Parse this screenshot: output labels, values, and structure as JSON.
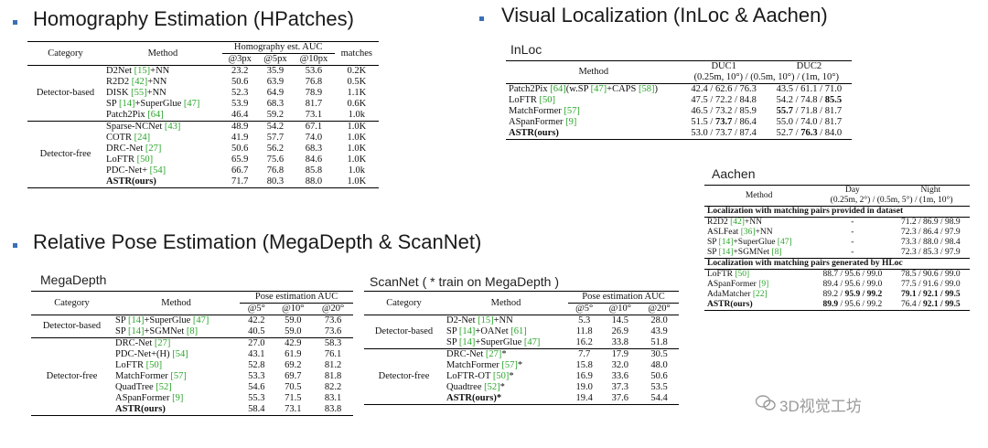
{
  "headings": {
    "homography": "Homography Estimation (HPatches)",
    "visloc": "Visual Localization (InLoc & Aachen)",
    "relpose": "Relative Pose Estimation (MegaDepth & ScanNet)"
  },
  "colors": {
    "bullet": "#3b6fb6",
    "ref_green": "#2aa52a"
  },
  "homography": {
    "hdr": {
      "category": "Category",
      "method": "Method",
      "group": "Homography est. AUC",
      "matches": "matches",
      "c1": "@3px",
      "c2": "@5px",
      "c3": "@10px"
    },
    "cat1": "Detector-based",
    "cat2": "Detector-free",
    "rows1": [
      {
        "m": "D2Net ",
        "r": "[15]",
        "s": "+NN",
        "v": [
          "23.2",
          "35.9",
          "53.6",
          "0.2K"
        ]
      },
      {
        "m": "R2D2 ",
        "r": "[42]",
        "s": "+NN",
        "v": [
          "50.6",
          "63.9",
          "76.8",
          "0.5K"
        ]
      },
      {
        "m": "DISK ",
        "r": "[55]",
        "s": "+NN",
        "v": [
          "52.3",
          "64.9",
          "78.9",
          "1.1K"
        ]
      },
      {
        "m": "SP ",
        "r": "[14]",
        "s": "+SuperGlue ",
        "r2": "[47]",
        "v": [
          "53.9",
          "68.3",
          "81.7",
          "0.6K"
        ]
      },
      {
        "m": "Patch2Pix ",
        "r": "[64]",
        "s": "",
        "v": [
          "46.4",
          "59.2",
          "73.1",
          "1.0k"
        ]
      }
    ],
    "rows2": [
      {
        "m": "Sparse-NCNet ",
        "r": "[43]",
        "s": "",
        "v": [
          "48.9",
          "54.2",
          "67.1",
          "1.0K"
        ]
      },
      {
        "m": "COTR ",
        "r": "[24]",
        "s": "",
        "v": [
          "41.9",
          "57.7",
          "74.0",
          "1.0K"
        ]
      },
      {
        "m": "DRC-Net ",
        "r": "[27]",
        "s": "",
        "v": [
          "50.6",
          "56.2",
          "68.3",
          "1.0K"
        ]
      },
      {
        "m": "LoFTR ",
        "r": "[50]",
        "s": "",
        "v": [
          "65.9",
          "75.6",
          "84.6",
          "1.0K"
        ]
      },
      {
        "m": "PDC-Net+ ",
        "r": "[54]",
        "s": "",
        "v": [
          "66.7",
          "76.8",
          "85.8",
          "1.0k"
        ]
      },
      {
        "m": "ASTR(ours)",
        "r": "",
        "s": "",
        "v": [
          "71.7",
          "80.3",
          "88.0",
          "1.0K"
        ],
        "bold": true
      }
    ]
  },
  "inloc": {
    "sub": "InLoc",
    "hdr": {
      "method": "Method",
      "duc1": "DUC1",
      "duc2": "DUC2",
      "thr": "(0.25m, 10°) / (0.5m, 10°) / (1m, 10°)"
    },
    "rows": [
      {
        "m": "Patch2Pix ",
        "r": "[64]",
        "s": "(w.SP ",
        "r2": "[47]",
        "s2": "+CAPS ",
        "r3": "[58]",
        "s3": ")",
        "d1": "42.4 / 62.6 / 76.3",
        "d2": "43.5 / 61.1 / 71.0"
      },
      {
        "m": "LoFTR ",
        "r": "[50]",
        "d1": "47.5 / 72.2 / 84.8",
        "d2a": "54.2 / 74.8 / ",
        "d2b": "85.5"
      },
      {
        "m": "MatchFormer ",
        "r": "[57]",
        "d1": "46.5 / 73.2 / 85.9",
        "d2b0": "55.7",
        "d2c": " / 71.8 / 81.7"
      },
      {
        "m": "ASpanFormer ",
        "r": "[9]",
        "d1a": "51.5 / ",
        "d1b": "73.7",
        "d1c": " / 86.4",
        "d2": "55.0 / 74.0 / 81.7"
      },
      {
        "m": "ASTR(ours)",
        "bold": true,
        "d1": "53.0 / 73.7 / 87.4",
        "d2p": "52.7 / ",
        "d2q": "76.3",
        "d2r": " / 84.0"
      }
    ]
  },
  "aachen": {
    "sub": "Aachen",
    "hdr": {
      "method": "Method",
      "day": "Day",
      "night": "Night",
      "day_thr": "(0.25m, 2°) / (0.5m, 5°) / (1m, 10°)"
    },
    "sec1": "Localization with matching pairs provided in dataset",
    "sec2": "Localization with matching pairs generated by HLoc",
    "rows1": [
      {
        "m": "R2D2 ",
        "r": "[42]",
        "s": "+NN",
        "day": "-",
        "night": "71.2 / 86.9 / 98.9"
      },
      {
        "m": "ASLFeat ",
        "r": "[36]",
        "s": "+NN",
        "day": "-",
        "night": "72.3 / 86.4 / 97.9"
      },
      {
        "m": "SP ",
        "r": "[14]",
        "s": "+SuperGlue ",
        "r2": "[47]",
        "day": "-",
        "night": "73.3 / 88.0 / 98.4"
      },
      {
        "m": "SP ",
        "r": "[14]",
        "s": "+SGMNet ",
        "r2": "[8]",
        "day": "-",
        "night": "72.3 / 85.3 / 97.9"
      }
    ],
    "rows2": [
      {
        "m": "LoFTR ",
        "r": "[50]",
        "day": "88.7 / 95.6 / 99.0",
        "night": "78.5 / 90.6 / 99.0"
      },
      {
        "m": "ASpanFormer ",
        "r": "[9]",
        "day": "89.4 / 95.6 / 99.0",
        "night": "77.5 / 91.6 / 99.0"
      },
      {
        "m": "AdaMatcher ",
        "r": "[22]",
        "day_a": "89.2 / ",
        "day_b": "95.9 / 99.2",
        "night": "79.1 / 92.1 / 99.5",
        "night_bold": true
      },
      {
        "m": "ASTR(ours)",
        "bold": true,
        "day_a": "89.9",
        "day_b": " / 95.6 / 99.2",
        "night_a": "76.4 / ",
        "night_b": "92.1 / 99.5"
      }
    ]
  },
  "megadepth": {
    "sub": "MegaDepth",
    "hdr": {
      "category": "Category",
      "method": "Method",
      "group": "Pose estimation AUC",
      "c1": "@5°",
      "c2": "@10°",
      "c3": "@20°"
    },
    "cat1": "Detector-based",
    "cat2": "Detector-free",
    "rows1": [
      {
        "m": "SP ",
        "r": "[14]",
        "s": "+SuperGlue ",
        "r2": "[47]",
        "v": [
          "42.2",
          "59.0",
          "73.6"
        ]
      },
      {
        "m": "SP ",
        "r": "[14]",
        "s": "+SGMNet ",
        "r2": "[8]",
        "v": [
          "40.5",
          "59.0",
          "73.6"
        ]
      }
    ],
    "rows2": [
      {
        "m": "DRC-Net ",
        "r": "[27]",
        "s": "",
        "v": [
          "27.0",
          "42.9",
          "58.3"
        ]
      },
      {
        "m": "PDC-Net+(H) ",
        "r": "[54]",
        "s": "",
        "v": [
          "43.1",
          "61.9",
          "76.1"
        ]
      },
      {
        "m": "LoFTR ",
        "r": "[50]",
        "s": "",
        "v": [
          "52.8",
          "69.2",
          "81.2"
        ]
      },
      {
        "m": "MatchFormer ",
        "r": "[57]",
        "s": "",
        "v": [
          "53.3",
          "69.7",
          "81.8"
        ]
      },
      {
        "m": "QuadTree ",
        "r": "[52]",
        "s": "",
        "v": [
          "54.6",
          "70.5",
          "82.2"
        ]
      },
      {
        "m": "ASpanFormer ",
        "r": "[9]",
        "s": "",
        "v": [
          "55.3",
          "71.5",
          "83.1"
        ]
      },
      {
        "m": "ASTR(ours)",
        "r": "",
        "s": "",
        "v": [
          "58.4",
          "73.1",
          "83.8"
        ],
        "bold": true
      }
    ]
  },
  "scannet": {
    "sub": "ScanNet ( * train on MegaDepth )",
    "hdr": {
      "category": "Category",
      "method": "Method",
      "group": "Pose estimation AUC",
      "c1": "@5°",
      "c2": "@10°",
      "c3": "@20°"
    },
    "cat1": "Detector-based",
    "cat2": "Detector-free",
    "rows1": [
      {
        "m": "D2-Net ",
        "r": "[15]",
        "s": "+NN",
        "v": [
          "5.3",
          "14.5",
          "28.0"
        ]
      },
      {
        "m": "SP ",
        "r": "[14]",
        "s": "+OANet ",
        "r2": "[61]",
        "v": [
          "11.8",
          "26.9",
          "43.9"
        ]
      },
      {
        "m": "SP ",
        "r": "[14]",
        "s": "+SuperGlue ",
        "r2": "[47]",
        "v": [
          "16.2",
          "33.8",
          "51.8"
        ]
      }
    ],
    "rows2": [
      {
        "m": "DRC-Net ",
        "r": "[27]",
        "s": "*",
        "v": [
          "7.7",
          "17.9",
          "30.5"
        ]
      },
      {
        "m": "MatchFormer ",
        "r": "[57]",
        "s": "*",
        "v": [
          "15.8",
          "32.0",
          "48.0"
        ]
      },
      {
        "m": "LoFTR-OT ",
        "r": "[50]",
        "s": "*",
        "v": [
          "16.9",
          "33.6",
          "50.6"
        ]
      },
      {
        "m": "Quadtree ",
        "r": "[52]",
        "s": "*",
        "v": [
          "19.0",
          "37.3",
          "53.5"
        ]
      },
      {
        "m": "ASTR(ours)*",
        "r": "",
        "s": "",
        "v": [
          "19.4",
          "37.6",
          "54.4"
        ],
        "bold": true
      }
    ]
  },
  "watermark": "3D视觉工坊"
}
